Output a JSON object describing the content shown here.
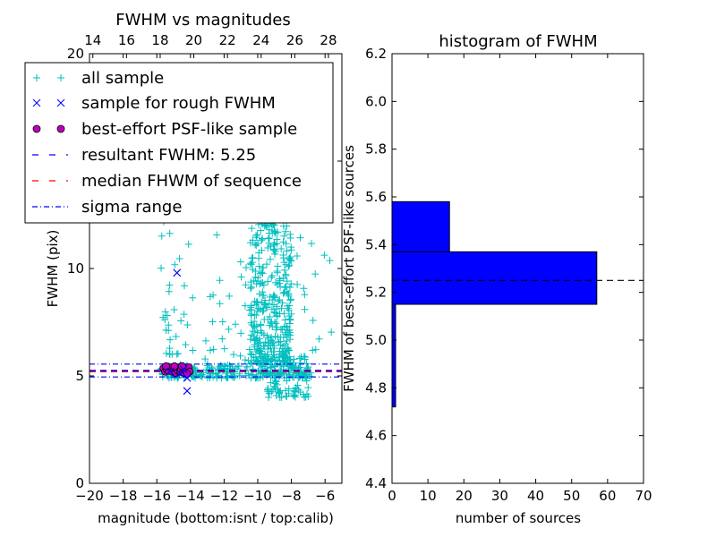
{
  "chart_data": [
    {
      "type": "scatter",
      "title": "FWHM vs magnitudes",
      "xlabel": "magnitude (bottom:isnt / top:calib)",
      "ylabel": "FWHM (pix)",
      "xlim": [
        -20,
        -5
      ],
      "ylim": [
        0,
        20
      ],
      "xticks": [
        -20,
        -18,
        -16,
        -14,
        -12,
        -10,
        -8,
        -6
      ],
      "xtick_labels": [
        "−20",
        "−18",
        "−16",
        "−14",
        "−12",
        "−10",
        "−8",
        "−6"
      ],
      "yticks": [
        0,
        5,
        10,
        15,
        20
      ],
      "ytick_labels": [
        "0",
        "5",
        "10",
        "15",
        "20"
      ],
      "top_axis": {
        "ticks": [
          14,
          16,
          18,
          20,
          22,
          24,
          26,
          28
        ],
        "tick_labels": [
          "14",
          "16",
          "18",
          "20",
          "22",
          "24",
          "26",
          "28"
        ],
        "offset": 33.8
      },
      "legend_position": "upper-left",
      "colors": {
        "all_sample": "#00bfbf",
        "rough_sample": "#0000ff",
        "best_effort": "#bf00bf",
        "resultant": "#0000ff",
        "median": "#ff0000",
        "sigma": "#0000ff"
      },
      "series": [
        {
          "name": "all sample",
          "marker": "+",
          "clusters": [
            {
              "x": [
                -15.8,
                -6.8
              ],
              "y": [
                4.9,
                5.5
              ],
              "n": 230
            },
            {
              "x": [
                -10.5,
                -8.0
              ],
              "y": [
                5.5,
                12.0
              ],
              "n": 320
            },
            {
              "x": [
                -10.0,
                -8.8
              ],
              "y": [
                12.0,
                19.5
              ],
              "n": 120
            },
            {
              "x": [
                -9.5,
                -7.0
              ],
              "y": [
                4.0,
                6.0
              ],
              "n": 90
            },
            {
              "x": [
                -15.8,
                -15.0
              ],
              "y": [
                6.0,
                19.0
              ],
              "n": 45
            },
            {
              "x": [
                -15.0,
                -5.5
              ],
              "y": [
                5.5,
                13.0
              ],
              "n": 90
            }
          ]
        },
        {
          "name": "sample for rough FWHM",
          "marker": "x",
          "points": [
            [
              -14.8,
              9.8
            ],
            [
              -14.2,
              4.3
            ],
            [
              -14.2,
              4.9
            ],
            [
              -14.6,
              5.1
            ],
            [
              -15.2,
              5.2
            ],
            [
              -14.4,
              5.3
            ]
          ]
        },
        {
          "name": "best-effort PSF-like sample",
          "marker": "o",
          "points": [
            [
              -15.6,
              5.35
            ],
            [
              -15.5,
              5.2
            ],
            [
              -15.4,
              5.3
            ],
            [
              -15.3,
              5.25
            ],
            [
              -15.2,
              5.4
            ],
            [
              -15.1,
              5.2
            ],
            [
              -15.0,
              5.3
            ],
            [
              -14.9,
              5.15
            ],
            [
              -14.85,
              5.35
            ],
            [
              -14.75,
              5.25
            ],
            [
              -14.7,
              5.4
            ],
            [
              -14.6,
              5.2
            ],
            [
              -14.55,
              5.3
            ],
            [
              -14.45,
              5.15
            ],
            [
              -14.4,
              5.35
            ],
            [
              -14.3,
              5.25
            ],
            [
              -14.25,
              5.2
            ],
            [
              -14.15,
              5.3
            ],
            [
              -14.1,
              5.4
            ],
            [
              -14.05,
              5.2
            ],
            [
              -15.45,
              5.45
            ],
            [
              -14.95,
              5.45
            ],
            [
              -14.5,
              5.45
            ],
            [
              -14.2,
              5.1
            ]
          ]
        },
        {
          "name": "resultant FWHM: 5.25",
          "style": "dashed",
          "y": 5.25
        },
        {
          "name": "median FHWM of sequence",
          "style": "dashed",
          "y": 5.2
        },
        {
          "name": "sigma range",
          "style": "dashdot",
          "y": [
            4.95,
            5.55
          ]
        }
      ]
    },
    {
      "type": "bar",
      "orientation": "horizontal",
      "title": "histogram of FWHM",
      "xlabel": "number of sources",
      "ylabel": "FWHM of best-effort PSF-like sources",
      "xlim": [
        0,
        70
      ],
      "ylim": [
        4.4,
        6.2
      ],
      "xticks": [
        0,
        10,
        20,
        30,
        40,
        50,
        60,
        70
      ],
      "xtick_labels": [
        "0",
        "10",
        "20",
        "30",
        "40",
        "50",
        "60",
        "70"
      ],
      "yticks": [
        4.4,
        4.6,
        4.8,
        5.0,
        5.2,
        5.4,
        5.6,
        5.8,
        6.0,
        6.2
      ],
      "ytick_labels": [
        "4.4",
        "4.6",
        "4.8",
        "5.0",
        "5.2",
        "5.4",
        "5.6",
        "5.8",
        "6.0",
        "6.2"
      ],
      "bar_color": "#0000ff",
      "bins": [
        {
          "y0": 4.72,
          "y1": 5.15,
          "count": 1
        },
        {
          "y0": 5.15,
          "y1": 5.37,
          "count": 57
        },
        {
          "y0": 5.37,
          "y1": 5.58,
          "count": 16
        }
      ],
      "reference_line": {
        "y": 5.25,
        "style": "dashed",
        "color": "#000000"
      }
    }
  ]
}
